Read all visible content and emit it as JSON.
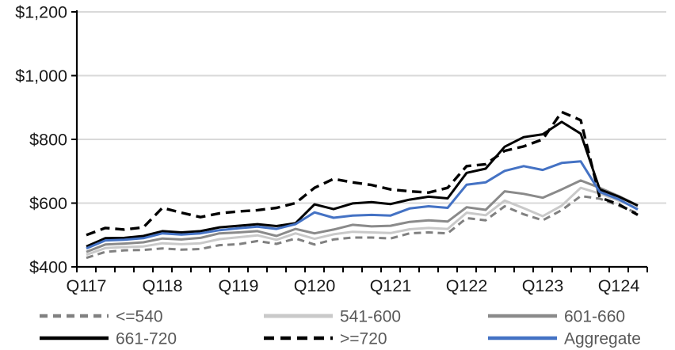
{
  "chart_data": {
    "type": "line",
    "title": "",
    "xlabel": "",
    "ylabel": "",
    "grid": "horizontal",
    "legend_position": "bottom",
    "currency_format": "dollar",
    "ylim": [
      400,
      1200
    ],
    "y_axis": {
      "ticks": [
        {
          "label": "$400",
          "value": 400
        },
        {
          "label": "$600",
          "value": 600
        },
        {
          "label": "$800",
          "value": 800
        },
        {
          "label": "$1,000",
          "value": 1000
        },
        {
          "label": "$1,200",
          "value": 1200
        }
      ],
      "gridline_values": [
        600,
        800,
        1000,
        1200
      ]
    },
    "x_axis": {
      "labels": [
        "Q117",
        "Q118",
        "Q119",
        "Q120",
        "Q121",
        "Q122",
        "Q123",
        "Q124"
      ],
      "label_category_indices": [
        0,
        4,
        8,
        12,
        16,
        20,
        24,
        28
      ],
      "tick_interval": 1,
      "label_interval": 4
    },
    "x": [
      "Q1 2017",
      "Q2 2017",
      "Q3 2017",
      "Q4 2017",
      "Q1 2018",
      "Q2 2018",
      "Q3 2018",
      "Q4 2018",
      "Q1 2019",
      "Q2 2019",
      "Q3 2019",
      "Q4 2019",
      "Q1 2020",
      "Q2 2020",
      "Q3 2020",
      "Q4 2020",
      "Q1 2021",
      "Q2 2021",
      "Q3 2021",
      "Q4 2021",
      "Q1 2022",
      "Q2 2022",
      "Q3 2022",
      "Q4 2022",
      "Q1 2023",
      "Q2 2023",
      "Q3 2023",
      "Q4 2023",
      "Q1 2024",
      "Q2 2024"
    ],
    "series": [
      {
        "key": "le540",
        "name": "<=540",
        "color": "#808080",
        "style": "dashed",
        "width": 3,
        "dash": "9 6",
        "values": [
          428,
          447,
          452,
          453,
          458,
          454,
          456,
          468,
          471,
          481,
          472,
          489,
          470,
          486,
          492,
          492,
          489,
          505,
          508,
          505,
          553,
          546,
          590,
          565,
          546,
          578,
          622,
          614,
          592,
          568
        ]
      },
      {
        "key": "s541_600",
        "name": "541-600",
        "color": "#C9C9C9",
        "style": "solid",
        "width": 3,
        "dash": "",
        "values": [
          438,
          459,
          462,
          464,
          474,
          471,
          474,
          487,
          493,
          499,
          485,
          505,
          488,
          502,
          510,
          508,
          506,
          518,
          522,
          519,
          570,
          562,
          608,
          584,
          559,
          592,
          648,
          630,
          608,
          584
        ]
      },
      {
        "key": "s601_660",
        "name": "601-660",
        "color": "#8A8A8A",
        "style": "solid",
        "width": 3,
        "dash": "",
        "values": [
          447,
          470,
          473,
          477,
          489,
          486,
          491,
          505,
          508,
          512,
          497,
          519,
          505,
          517,
          532,
          527,
          529,
          541,
          546,
          542,
          587,
          579,
          637,
          629,
          617,
          643,
          671,
          648,
          622,
          593
        ]
      },
      {
        "key": "s661_720",
        "name": "661-720",
        "color": "#000000",
        "style": "solid",
        "width": 3,
        "dash": "",
        "values": [
          464,
          490,
          491,
          497,
          512,
          508,
          512,
          524,
          529,
          534,
          528,
          537,
          596,
          581,
          599,
          603,
          597,
          611,
          620,
          615,
          695,
          708,
          777,
          807,
          816,
          855,
          818,
          643,
          620,
          592
        ]
      },
      {
        "key": "ge720",
        "name": ">=720",
        "color": "#000000",
        "style": "dashed",
        "width": 3.4,
        "dash": "12 7",
        "values": [
          500,
          522,
          517,
          524,
          585,
          570,
          556,
          568,
          574,
          578,
          585,
          600,
          648,
          676,
          665,
          657,
          643,
          637,
          633,
          648,
          716,
          722,
          764,
          778,
          800,
          886,
          860,
          618,
          596,
          563
        ]
      },
      {
        "key": "aggregate",
        "name": "Aggregate",
        "color": "#4472C4",
        "style": "solid",
        "width": 3,
        "dash": "",
        "values": [
          458,
          483,
          485,
          490,
          505,
          501,
          505,
          515,
          521,
          526,
          519,
          534,
          571,
          554,
          561,
          563,
          561,
          583,
          590,
          585,
          658,
          665,
          701,
          716,
          704,
          726,
          731,
          635,
          612,
          580
        ]
      }
    ],
    "legend": {
      "rows": 2,
      "columns": 3,
      "order": [
        "<=540",
        "541-600",
        "601-660",
        "661-720",
        ">=720",
        "Aggregate"
      ]
    },
    "colors": {
      "gridline": "#D9D9D9",
      "axis": "#000000",
      "axis_label_text": "#1A1A1A",
      "legend_text": "#595959",
      "accent_blue": "#4472C4"
    }
  }
}
